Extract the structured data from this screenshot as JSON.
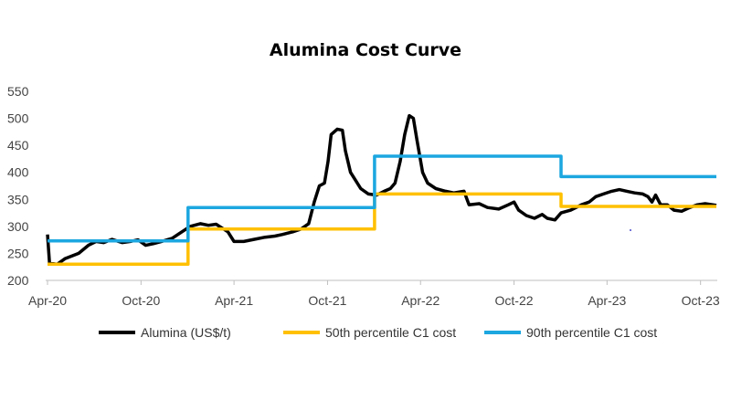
{
  "chart_data": {
    "type": "line",
    "title": "Alumina Cost Curve",
    "xlabel": "",
    "ylabel": "",
    "ylim": [
      200,
      550
    ],
    "yticks": [
      "550",
      "500",
      "450",
      "400",
      "350",
      "300",
      "250",
      "200"
    ],
    "xlim": [
      "2020-04-01",
      "2023-11-01"
    ],
    "xticks": [
      {
        "label": "Apr-20",
        "date": "2020-04-01"
      },
      {
        "label": "Oct-20",
        "date": "2020-10-01"
      },
      {
        "label": "Apr-21",
        "date": "2021-04-01"
      },
      {
        "label": "Oct-21",
        "date": "2021-10-01"
      },
      {
        "label": "Apr-22",
        "date": "2022-04-01"
      },
      {
        "label": "Oct-22",
        "date": "2022-10-01"
      },
      {
        "label": "Apr-23",
        "date": "2023-04-01"
      },
      {
        "label": "Oct-23",
        "date": "2023-10-01"
      }
    ],
    "grid": false,
    "legend_position": "bottom",
    "series": [
      {
        "name": "Alumina (US$/t)",
        "color": "#000000",
        "style": "line",
        "points": [
          [
            "2020-04-01",
            285
          ],
          [
            "2020-04-05",
            232
          ],
          [
            "2020-04-20",
            230
          ],
          [
            "2020-05-05",
            240
          ],
          [
            "2020-06-01",
            250
          ],
          [
            "2020-06-20",
            265
          ],
          [
            "2020-07-05",
            272
          ],
          [
            "2020-07-20",
            270
          ],
          [
            "2020-08-05",
            276
          ],
          [
            "2020-08-25",
            270
          ],
          [
            "2020-09-10",
            272
          ],
          [
            "2020-09-25",
            275
          ],
          [
            "2020-10-10",
            265
          ],
          [
            "2020-10-25",
            268
          ],
          [
            "2020-11-10",
            272
          ],
          [
            "2020-12-01",
            278
          ],
          [
            "2020-12-20",
            290
          ],
          [
            "2021-01-05",
            300
          ],
          [
            "2021-01-25",
            305
          ],
          [
            "2021-02-10",
            302
          ],
          [
            "2021-02-25",
            304
          ],
          [
            "2021-03-10",
            296
          ],
          [
            "2021-03-20",
            290
          ],
          [
            "2021-04-01",
            272
          ],
          [
            "2021-04-20",
            272
          ],
          [
            "2021-05-10",
            276
          ],
          [
            "2021-06-01",
            280
          ],
          [
            "2021-06-20",
            282
          ],
          [
            "2021-07-05",
            285
          ],
          [
            "2021-07-25",
            290
          ],
          [
            "2021-08-10",
            295
          ],
          [
            "2021-08-25",
            305
          ],
          [
            "2021-09-05",
            345
          ],
          [
            "2021-09-15",
            375
          ],
          [
            "2021-09-25",
            380
          ],
          [
            "2021-10-02",
            420
          ],
          [
            "2021-10-08",
            470
          ],
          [
            "2021-10-20",
            480
          ],
          [
            "2021-10-30",
            478
          ],
          [
            "2021-11-05",
            440
          ],
          [
            "2021-11-15",
            400
          ],
          [
            "2021-11-25",
            385
          ],
          [
            "2021-12-05",
            370
          ],
          [
            "2021-12-20",
            360
          ],
          [
            "2022-01-05",
            358
          ],
          [
            "2022-01-20",
            365
          ],
          [
            "2022-02-01",
            370
          ],
          [
            "2022-02-10",
            380
          ],
          [
            "2022-02-20",
            420
          ],
          [
            "2022-03-01",
            470
          ],
          [
            "2022-03-10",
            505
          ],
          [
            "2022-03-18",
            500
          ],
          [
            "2022-03-25",
            460
          ],
          [
            "2022-04-05",
            400
          ],
          [
            "2022-04-15",
            380
          ],
          [
            "2022-05-01",
            370
          ],
          [
            "2022-05-20",
            365
          ],
          [
            "2022-06-05",
            362
          ],
          [
            "2022-06-25",
            365
          ],
          [
            "2022-07-05",
            340
          ],
          [
            "2022-07-25",
            342
          ],
          [
            "2022-08-10",
            335
          ],
          [
            "2022-09-01",
            332
          ],
          [
            "2022-09-20",
            340
          ],
          [
            "2022-10-01",
            345
          ],
          [
            "2022-10-10",
            330
          ],
          [
            "2022-10-25",
            320
          ],
          [
            "2022-11-10",
            315
          ],
          [
            "2022-11-25",
            322
          ],
          [
            "2022-12-05",
            315
          ],
          [
            "2022-12-20",
            312
          ],
          [
            "2023-01-01",
            325
          ],
          [
            "2023-01-20",
            330
          ],
          [
            "2023-02-10",
            340
          ],
          [
            "2023-02-25",
            345
          ],
          [
            "2023-03-10",
            355
          ],
          [
            "2023-03-25",
            360
          ],
          [
            "2023-04-10",
            365
          ],
          [
            "2023-04-25",
            368
          ],
          [
            "2023-05-10",
            365
          ],
          [
            "2023-05-25",
            362
          ],
          [
            "2023-06-10",
            360
          ],
          [
            "2023-06-20",
            355
          ],
          [
            "2023-06-28",
            345
          ],
          [
            "2023-07-05",
            358
          ],
          [
            "2023-07-15",
            340
          ],
          [
            "2023-07-28",
            340
          ],
          [
            "2023-08-10",
            330
          ],
          [
            "2023-08-25",
            328
          ],
          [
            "2023-09-10",
            335
          ],
          [
            "2023-09-25",
            340
          ],
          [
            "2023-10-10",
            342
          ],
          [
            "2023-10-25",
            340
          ],
          [
            "2023-11-01",
            339
          ]
        ]
      },
      {
        "name": "50th percentile C1 cost",
        "color": "#FFC000",
        "style": "step",
        "points": [
          [
            "2020-04-01",
            230
          ],
          [
            "2021-01-01",
            230
          ],
          [
            "2021-01-01",
            295
          ],
          [
            "2022-01-01",
            295
          ],
          [
            "2022-01-01",
            360
          ],
          [
            "2023-01-01",
            360
          ],
          [
            "2023-01-01",
            337
          ],
          [
            "2023-11-01",
            337
          ]
        ]
      },
      {
        "name": "90th percentile C1 cost",
        "color": "#1CA7E0",
        "style": "step",
        "points": [
          [
            "2020-04-01",
            273
          ],
          [
            "2021-01-01",
            273
          ],
          [
            "2021-01-01",
            335
          ],
          [
            "2022-01-01",
            335
          ],
          [
            "2022-01-01",
            430
          ],
          [
            "2023-01-01",
            430
          ],
          [
            "2023-01-01",
            392
          ],
          [
            "2023-11-01",
            392
          ]
        ]
      }
    ]
  }
}
